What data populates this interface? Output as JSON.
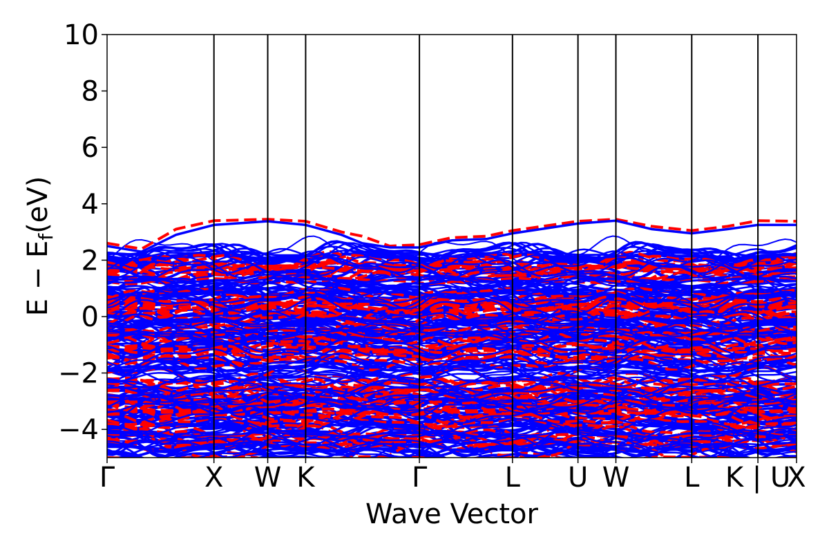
{
  "chart_data": {
    "type": "line",
    "title": "",
    "xlabel": "Wave Vector",
    "ylabel": "E − E",
    "ylabel_subscript": "f",
    "ylabel_unit": "(eV)",
    "ylim": [
      -5,
      10
    ],
    "xlim": [
      0,
      1
    ],
    "yticks": [
      {
        "value": -4,
        "label": "−4"
      },
      {
        "value": -2,
        "label": "−2"
      },
      {
        "value": 0,
        "label": "0"
      },
      {
        "value": 2,
        "label": "2"
      },
      {
        "value": 4,
        "label": "4"
      },
      {
        "value": 6,
        "label": "6"
      },
      {
        "value": 8,
        "label": "8"
      },
      {
        "value": 10,
        "label": "10"
      }
    ],
    "kpoints": [
      {
        "label": "Γ",
        "x": 0.0,
        "line": false
      },
      {
        "label": "X",
        "x": 0.155,
        "line": true
      },
      {
        "label": "W",
        "x": 0.233,
        "line": true
      },
      {
        "label": "K",
        "x": 0.288,
        "line": true
      },
      {
        "label": "Γ",
        "x": 0.453,
        "line": true
      },
      {
        "label": "L",
        "x": 0.588,
        "line": true
      },
      {
        "label": "U",
        "x": 0.683,
        "line": true
      },
      {
        "label": "W",
        "x": 0.738,
        "line": true
      },
      {
        "label": "L",
        "x": 0.848,
        "line": true
      },
      {
        "label": "K | U",
        "x": 0.944,
        "line": true
      },
      {
        "label": "X",
        "x": 1.0,
        "line": false
      }
    ],
    "series": [
      {
        "name": "",
        "color": "#0000ff",
        "style": "solid"
      },
      {
        "name": "",
        "color": "#ff0000",
        "style": "dashed"
      }
    ],
    "top_bands": {
      "x": [
        0.0,
        0.05,
        0.1,
        0.155,
        0.233,
        0.288,
        0.34,
        0.37,
        0.41,
        0.453,
        0.5,
        0.55,
        0.588,
        0.683,
        0.738,
        0.79,
        0.848,
        0.9,
        0.944,
        1.0
      ],
      "blue": [
        2.5,
        2.3,
        2.9,
        3.25,
        3.38,
        3.25,
        2.9,
        2.6,
        2.45,
        2.45,
        2.7,
        2.75,
        2.95,
        3.3,
        3.4,
        3.1,
        2.95,
        3.1,
        3.25,
        3.25
      ],
      "red": [
        2.6,
        2.4,
        3.1,
        3.4,
        3.45,
        3.38,
        3.0,
        2.85,
        2.5,
        2.55,
        2.8,
        2.85,
        3.05,
        3.38,
        3.45,
        3.2,
        3.05,
        3.2,
        3.4,
        3.38
      ]
    },
    "grid": false,
    "legend": "none"
  }
}
